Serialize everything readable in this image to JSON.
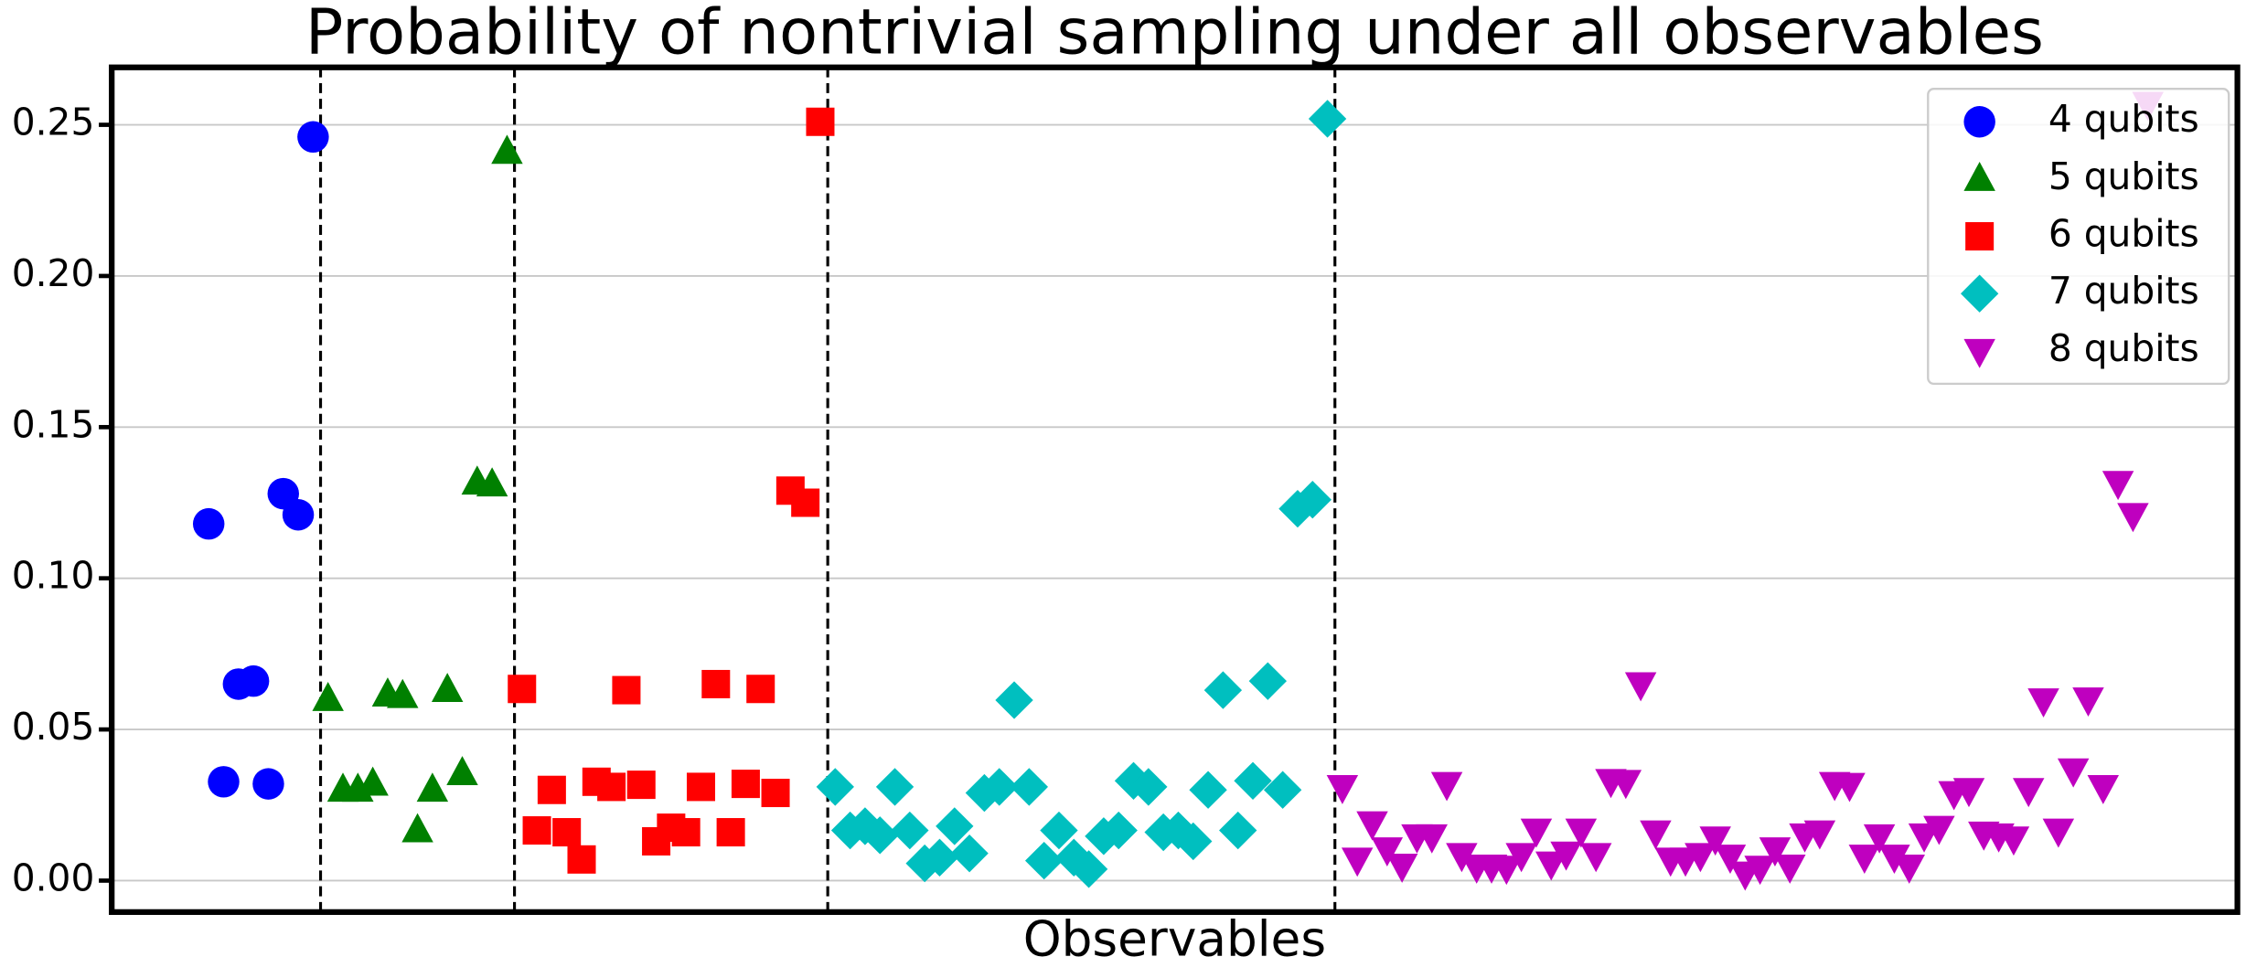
{
  "chart_data": {
    "type": "scatter",
    "title": "Probability of nontrivial sampling under all observables",
    "xlabel": "Observables",
    "xlim": [
      -6.5,
      136
    ],
    "ylim": [
      -0.0104,
      0.269
    ],
    "yticks": [
      {
        "value": 0,
        "label": "0.00"
      },
      {
        "value": 0.05,
        "label": "0.05"
      },
      {
        "value": 0.1,
        "label": "0.10"
      },
      {
        "value": 0.15,
        "label": "0.15"
      },
      {
        "value": 0.2,
        "label": "0.20"
      },
      {
        "value": 0.25,
        "label": "0.25"
      }
    ],
    "grid": true,
    "legend": "upper right",
    "vlines": [
      7.5,
      20.5,
      41.5,
      75.5
    ],
    "series": [
      {
        "name": "4 qubits",
        "color": "#0000ff",
        "marker": "circle",
        "x": [
          0,
          1,
          2,
          3,
          4,
          5,
          6,
          7
        ],
        "values": [
          0.118,
          0.0327,
          0.065,
          0.066,
          0.032,
          0.128,
          0.121,
          0.246
        ]
      },
      {
        "name": "5 qubits",
        "color": "#008000",
        "marker": "triangle-up",
        "x": [
          8,
          9,
          10,
          11,
          12,
          13,
          14,
          15,
          16,
          17,
          18,
          19,
          20
        ],
        "values": [
          0.06,
          0.03,
          0.03,
          0.032,
          0.0615,
          0.061,
          0.0166,
          0.03,
          0.063,
          0.0355,
          0.1316,
          0.131,
          0.241
        ]
      },
      {
        "name": "6 qubits",
        "color": "#ff0000",
        "marker": "square",
        "x": [
          21,
          22,
          23,
          24,
          25,
          26,
          27,
          28,
          29,
          30,
          31,
          32,
          33,
          34,
          35,
          36,
          37,
          38,
          39,
          40,
          41
        ],
        "values": [
          0.0634,
          0.0166,
          0.03,
          0.016,
          0.007,
          0.0327,
          0.031,
          0.063,
          0.0317,
          0.013,
          0.0175,
          0.016,
          0.031,
          0.065,
          0.016,
          0.032,
          0.0634,
          0.029,
          0.129,
          0.125,
          0.251
        ]
      },
      {
        "name": "7 qubits",
        "color": "#00bfbf",
        "marker": "diamond",
        "x": [
          42,
          43,
          44,
          45,
          46,
          47,
          48,
          49,
          50,
          51,
          52,
          53,
          54,
          55,
          56,
          57,
          58,
          59,
          60,
          61,
          62,
          63,
          64,
          65,
          66,
          67,
          68,
          69,
          70,
          71,
          72,
          73,
          74,
          75
        ],
        "values": [
          0.031,
          0.0166,
          0.018,
          0.015,
          0.031,
          0.0166,
          0.0057,
          0.0076,
          0.018,
          0.009,
          0.029,
          0.031,
          0.0597,
          0.031,
          0.0066,
          0.0166,
          0.0076,
          0.0038,
          0.0147,
          0.0166,
          0.033,
          0.031,
          0.016,
          0.0166,
          0.013,
          0.03,
          0.063,
          0.0166,
          0.033,
          0.066,
          0.03,
          0.123,
          0.126,
          0.252
        ]
      },
      {
        "name": "8 qubits",
        "color": "#bf00bf",
        "marker": "triangle-down",
        "x": [
          76,
          77,
          78,
          79,
          80,
          81,
          82,
          83,
          84,
          85,
          86,
          87,
          88,
          89,
          90,
          91,
          92,
          93,
          94,
          95,
          96,
          97,
          98,
          99,
          100,
          101,
          102,
          103,
          104,
          105,
          106,
          107,
          108,
          109,
          110,
          111,
          112,
          113,
          114,
          115,
          116,
          117,
          118,
          119,
          120,
          121,
          122,
          123,
          124,
          125,
          126,
          127,
          128,
          129,
          130
        ],
        "values": [
          0.031,
          0.007,
          0.019,
          0.0104,
          0.005,
          0.0147,
          0.0147,
          0.032,
          0.0085,
          0.0047,
          0.0047,
          0.0043,
          0.0085,
          0.0166,
          0.0057,
          0.009,
          0.0166,
          0.0085,
          0.033,
          0.0327,
          0.065,
          0.016,
          0.007,
          0.007,
          0.0085,
          0.014,
          0.008,
          0.0024,
          0.0043,
          0.0104,
          0.0047,
          0.015,
          0.016,
          0.032,
          0.0317,
          0.008,
          0.0147,
          0.008,
          0.0047,
          0.015,
          0.0175,
          0.029,
          0.03,
          0.0156,
          0.015,
          0.014,
          0.03,
          0.0597,
          0.0166,
          0.0365,
          0.06,
          0.031,
          0.1316,
          0.121,
          0.257
        ]
      }
    ]
  }
}
